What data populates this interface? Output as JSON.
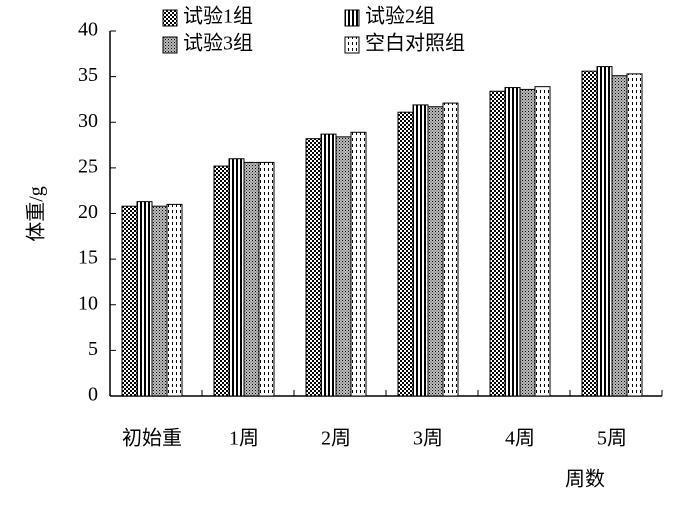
{
  "chart_data": {
    "type": "bar",
    "x_label": "周数",
    "y_label": "体重/g",
    "categories": [
      "初始重",
      "1周",
      "2周",
      "3周",
      "4周",
      "5周"
    ],
    "series": [
      {
        "name": "试验1组",
        "color": "#000000",
        "values": [
          20.8,
          25.2,
          28.2,
          31.1,
          33.4,
          35.6
        ]
      },
      {
        "name": "试验2组",
        "color": "#000000",
        "values": [
          21.3,
          26.0,
          28.7,
          31.9,
          33.8,
          36.1
        ]
      },
      {
        "name": "试验3组",
        "color": "#000000",
        "values": [
          20.8,
          25.6,
          28.4,
          31.7,
          33.6,
          35.1
        ]
      },
      {
        "name": "空白对照组",
        "color": "#000000",
        "values": [
          21.0,
          25.6,
          28.9,
          32.1,
          33.9,
          35.3
        ]
      }
    ],
    "ylim": [
      0,
      40
    ],
    "yticks": [
      0,
      5,
      10,
      15,
      20,
      25,
      30,
      35,
      40
    ],
    "grid": false,
    "legend": "top"
  }
}
